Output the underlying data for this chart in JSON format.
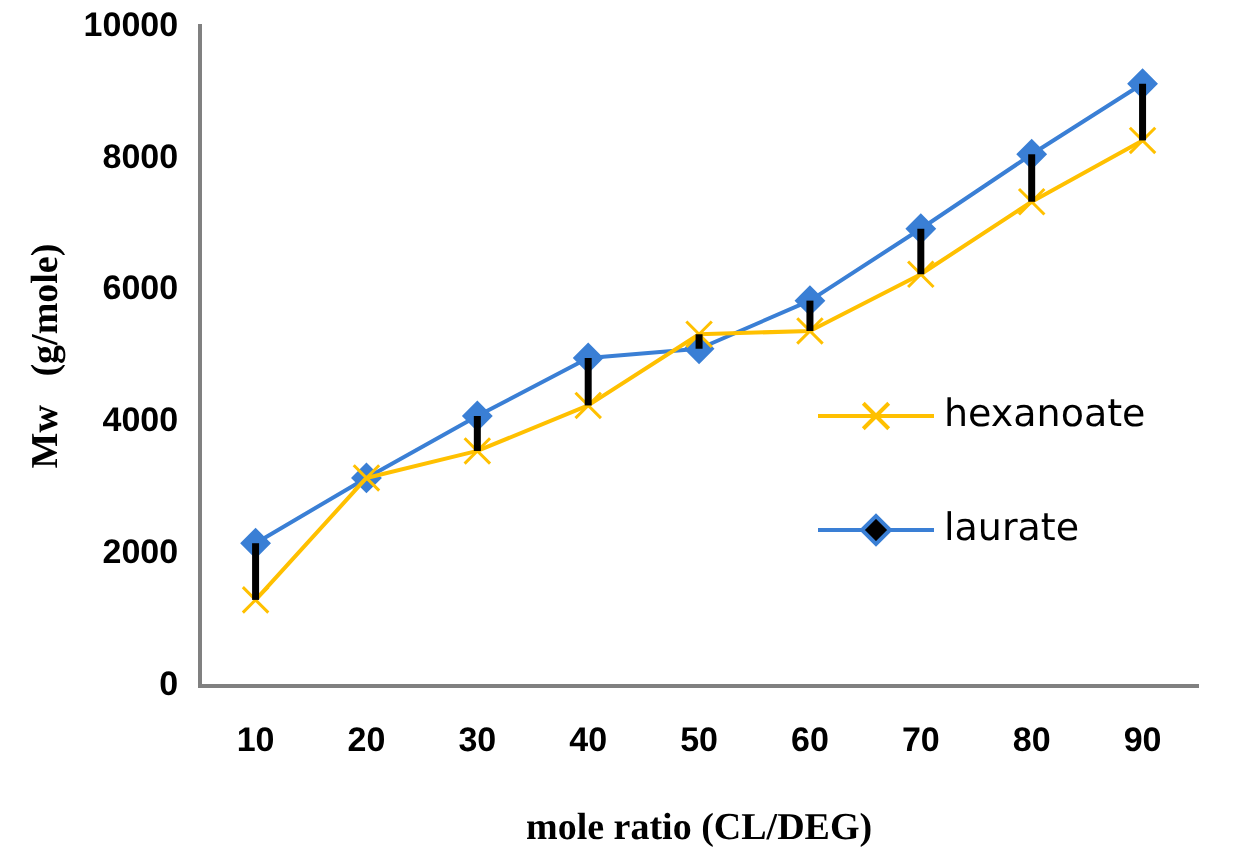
{
  "chart_data": {
    "type": "line",
    "xlabel": "mole ratio (CL/DEG)",
    "ylabel": "Mw   (g/mole)",
    "categories": [
      "10",
      "20",
      "30",
      "40",
      "50",
      "60",
      "70",
      "80",
      "90"
    ],
    "series": [
      {
        "name": "hexanoate",
        "color": "#ffc000",
        "marker": "cross",
        "values": [
          1300,
          3150,
          3560,
          4250,
          5330,
          5380,
          6240,
          7340,
          8270
        ]
      },
      {
        "name": "laurate",
        "color": "#3a7fd5",
        "marker": "diamond",
        "values": [
          2160,
          3150,
          4090,
          4970,
          5110,
          5840,
          6930,
          8060,
          9130
        ],
        "errors": [
          [
            1300,
            2160
          ],
          null,
          [
            3560,
            4090
          ],
          [
            4250,
            4970
          ],
          [
            5110,
            5330
          ],
          [
            5380,
            5840
          ],
          [
            6240,
            6930
          ],
          [
            7340,
            8060
          ],
          [
            8270,
            9130
          ]
        ]
      }
    ],
    "ylim": [
      0,
      10000
    ],
    "yticks": [
      0,
      2000,
      4000,
      6000,
      8000,
      10000
    ],
    "grid": false,
    "legend": "right"
  }
}
